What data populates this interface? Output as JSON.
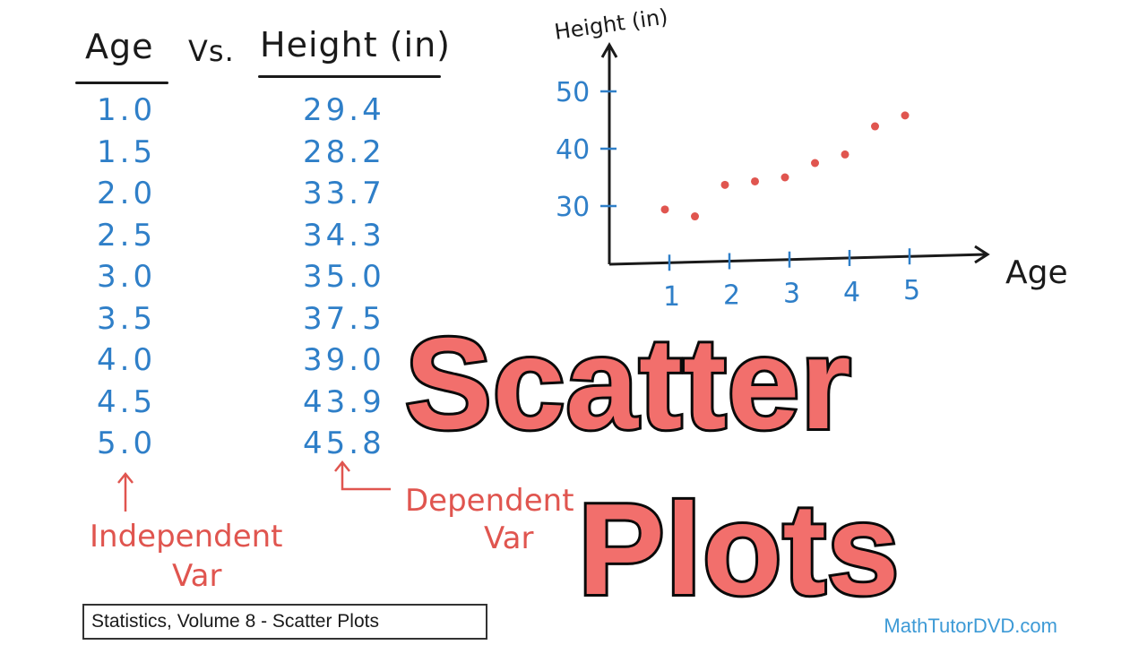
{
  "table": {
    "age_header": "Age",
    "vs_label": "Vs.",
    "height_header": "Height (in)",
    "ages": [
      "1.0",
      "1.5",
      "2.0",
      "2.5",
      "3.0",
      "3.5",
      "4.0",
      "4.5",
      "5.0"
    ],
    "heights": [
      "29.4",
      "28.2",
      "33.7",
      "34.3",
      "35.0",
      "37.5",
      "39.0",
      "43.9",
      "45.8"
    ],
    "independent_label_1": "Independent",
    "independent_label_2": "Var",
    "dependent_label_1": "Dependent",
    "dependent_label_2": "Var"
  },
  "chart_data": {
    "type": "scatter",
    "title": "",
    "xlabel": "Age",
    "ylabel": "Height (in)",
    "x": [
      1.0,
      1.5,
      2.0,
      2.5,
      3.0,
      3.5,
      4.0,
      4.5,
      5.0
    ],
    "y": [
      29.4,
      28.2,
      33.7,
      34.3,
      35.0,
      37.5,
      39.0,
      43.9,
      45.8
    ],
    "x_ticks": [
      1,
      2,
      3,
      4,
      5
    ],
    "y_ticks": [
      30,
      40,
      50
    ],
    "xlim": [
      0,
      6
    ],
    "ylim": [
      20,
      55
    ],
    "grid": false,
    "point_color": "#e0554f",
    "axis_color": "#1a1a1a",
    "tick_label_color": "#2f7fc8"
  },
  "overlay": {
    "title_line_1": "Scatter",
    "title_line_2": "Plots",
    "fill_color": "#f26f6c"
  },
  "footer": {
    "caption": "Statistics, Volume 8 - Scatter Plots",
    "brand": "MathTutorDVD.com"
  }
}
